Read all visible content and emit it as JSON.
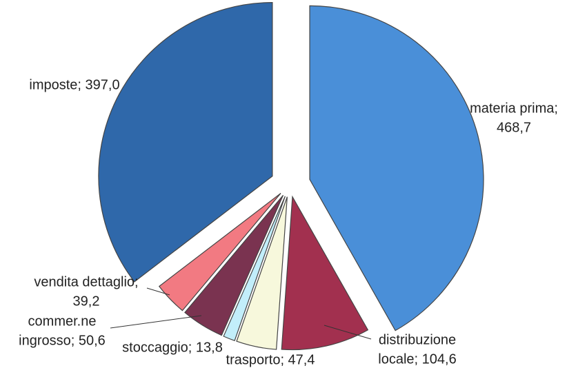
{
  "chart_data": {
    "type": "pie",
    "values": [
      468.7,
      104.6,
      47.4,
      13.8,
      50.6,
      39.2,
      397.0
    ],
    "value_labels": [
      [
        "materia prima;",
        "468,7"
      ],
      [
        "distribuzione",
        "locale; 104,6"
      ],
      [
        "trasporto; 47,4"
      ],
      [
        "stoccaggio; 13,8"
      ],
      [
        "commer.ne",
        "ingrosso; 50,6"
      ],
      [
        "vendita dettaglio;",
        "39,2"
      ],
      [
        "imposte; 397,0"
      ]
    ],
    "colors": [
      "#4a8fd8",
      "#a2304f",
      "#f7f8dc",
      "#c2eefa",
      "#7a3350",
      "#f27a82",
      "#2f68aa"
    ]
  }
}
